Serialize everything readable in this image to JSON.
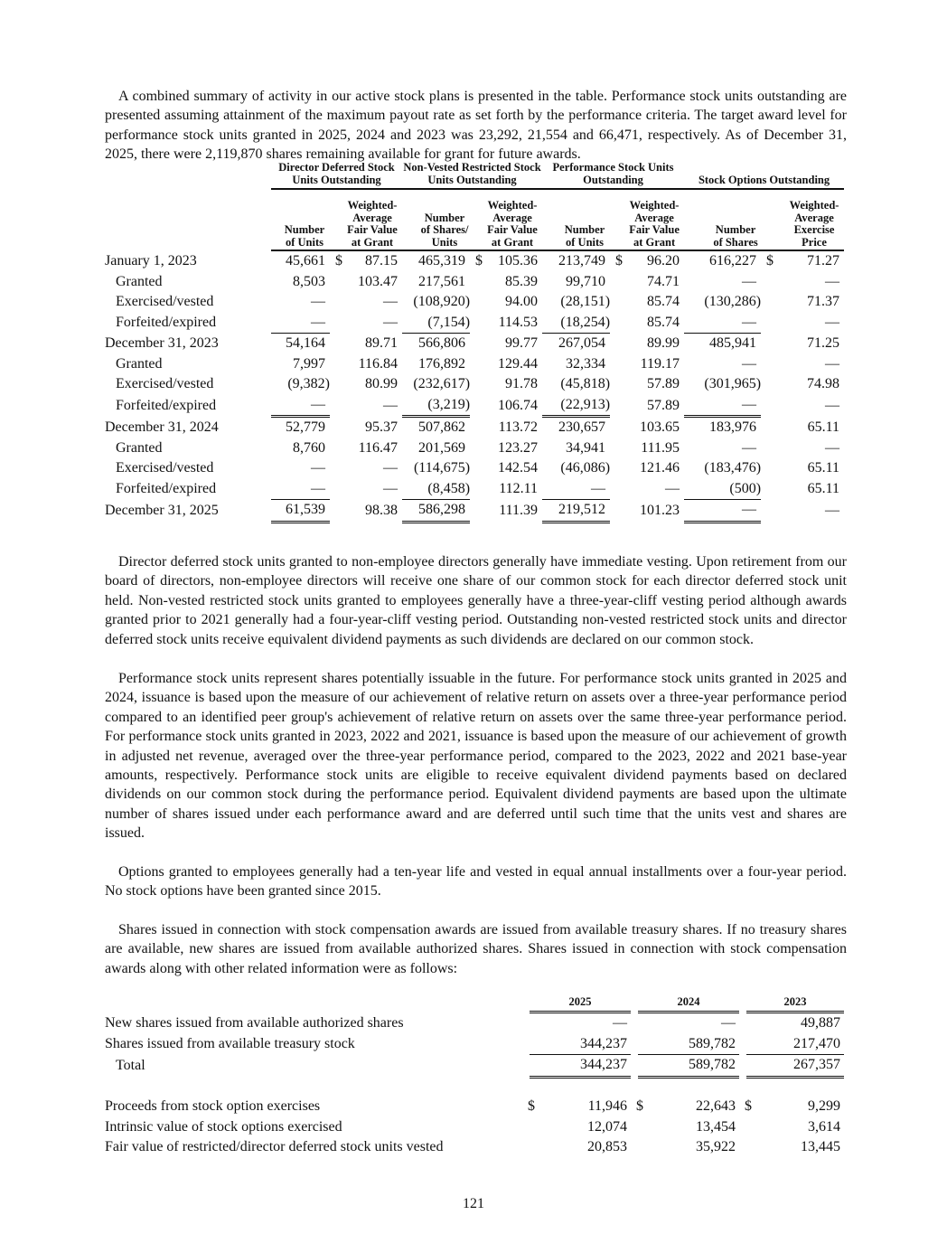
{
  "intro": "A combined summary of activity in our active stock plans is presented in the table. Performance stock units outstanding are presented assuming attainment of the maximum payout rate as set forth by the performance criteria. The target award level for performance stock units granted in 2025, 2024 and 2023 was 23,292, 21,554 and 66,471, respectively. As of December 31, 2025, there were 2,119,870 shares remaining available for grant for future awards.",
  "activity_table": {
    "groups": [
      "Director Deferred Stock Units Outstanding",
      "Non-Vested Restricted Stock Units Outstanding",
      "Performance Stock Units Outstanding",
      "Stock Options Outstanding"
    ],
    "columns": [
      "Number of Units",
      "Weighted-Average Fair Value at Grant",
      "Number of Shares/ Units",
      "Weighted-Average Fair Value at Grant",
      "Number of Units",
      "Weighted-Average Fair Value at Grant",
      "Number of Shares",
      "Weighted-Average Exercise Price"
    ],
    "currency_symbol": "$",
    "rows": [
      {
        "label": "January 1, 2023",
        "values": [
          "45,661",
          "87.15",
          "465,319",
          "105.36",
          "213,749",
          "96.20",
          "616,227",
          "71.27"
        ]
      },
      {
        "label": "Granted",
        "values": [
          "8,503",
          "103.47",
          "217,561",
          "85.39",
          "99,710",
          "74.71",
          "—",
          "—"
        ]
      },
      {
        "label": "Exercised/vested",
        "values": [
          "—",
          "—",
          "(108,920)",
          "94.00",
          "(28,151)",
          "85.74",
          "(130,286)",
          "71.37"
        ]
      },
      {
        "label": "Forfeited/expired",
        "values": [
          "—",
          "—",
          "(7,154)",
          "114.53",
          "(18,254)",
          "85.74",
          "—",
          "—"
        ]
      },
      {
        "label": "December 31, 2023",
        "values": [
          "54,164",
          "89.71",
          "566,806",
          "99.77",
          "267,054",
          "89.99",
          "485,941",
          "71.25"
        ]
      },
      {
        "label": "Granted",
        "values": [
          "7,997",
          "116.84",
          "176,892",
          "129.44",
          "32,334",
          "119.17",
          "—",
          "—"
        ]
      },
      {
        "label": "Exercised/vested",
        "values": [
          "(9,382)",
          "80.99",
          "(232,617)",
          "91.78",
          "(45,818)",
          "57.89",
          "(301,965)",
          "74.98"
        ]
      },
      {
        "label": "Forfeited/expired",
        "values": [
          "—",
          "—",
          "(3,219)",
          "106.74",
          "(22,913)",
          "57.89",
          "—",
          "—"
        ]
      },
      {
        "label": "December 31, 2024",
        "values": [
          "52,779",
          "95.37",
          "507,862",
          "113.72",
          "230,657",
          "103.65",
          "183,976",
          "65.11"
        ]
      },
      {
        "label": "Granted",
        "values": [
          "8,760",
          "116.47",
          "201,569",
          "123.27",
          "34,941",
          "111.95",
          "—",
          "—"
        ]
      },
      {
        "label": "Exercised/vested",
        "values": [
          "—",
          "—",
          "(114,675)",
          "142.54",
          "(46,086)",
          "121.46",
          "(183,476)",
          "65.11"
        ]
      },
      {
        "label": "Forfeited/expired",
        "values": [
          "—",
          "—",
          "(8,458)",
          "112.11",
          "—",
          "—",
          "(500)",
          "65.11"
        ]
      },
      {
        "label": "December 31, 2025",
        "values": [
          "61,539",
          "98.38",
          "586,298",
          "111.39",
          "219,512",
          "101.23",
          "—",
          "—"
        ]
      }
    ]
  },
  "paragraphs": [
    "Director deferred stock units granted to non-employee directors generally have immediate vesting. Upon retirement from our board of directors, non-employee directors will receive one share of our common stock for each director deferred stock unit held. Non-vested restricted stock units granted to employees generally have a three-year-cliff vesting period although awards granted prior to 2021 generally had a four-year-cliff vesting period. Outstanding non-vested restricted stock units and director deferred stock units receive equivalent dividend payments as such dividends are declared on our common stock.",
    "Performance stock units represent shares potentially issuable in the future. For performance stock units granted in 2025 and 2024, issuance is based upon the measure of our achievement of relative return on assets over a three-year performance period compared to an identified peer group's achievement of relative return on assets over the same three-year performance period. For performance stock units granted in 2023, 2022 and 2021, issuance is based upon the measure of our achievement of growth in adjusted net revenue, averaged over the three-year performance period, compared to the 2023, 2022 and 2021 base-year amounts, respectively. Performance stock units are eligible to receive equivalent dividend payments based on declared dividends on our common stock during the performance period. Equivalent dividend payments are based upon the ultimate number of shares issued under each performance award and are deferred until such time that the units vest and shares are issued.",
    "Options granted to employees generally had a ten-year life and vested in equal annual installments over a four-year period. No stock options have been granted since 2015.",
    "Shares issued in connection with stock compensation awards are issued from available treasury shares. If no treasury shares are available, new shares are issued from available authorized shares. Shares issued in connection with stock compensation awards along with other related information were as follows:"
  ],
  "shares_table": {
    "years": [
      "2025",
      "2024",
      "2023"
    ],
    "currency_symbol": "$",
    "rows": [
      {
        "label": "New shares issued from available authorized shares",
        "values": [
          "—",
          "—",
          "49,887"
        ]
      },
      {
        "label": "Shares issued from available treasury stock",
        "values": [
          "344,237",
          "589,782",
          "217,470"
        ]
      },
      {
        "label": "Total",
        "values": [
          "344,237",
          "589,782",
          "267,357"
        ]
      },
      {
        "label": "Proceeds from stock option exercises",
        "values": [
          "11,946",
          "22,643",
          "9,299"
        ]
      },
      {
        "label": "Intrinsic value of stock options exercised",
        "values": [
          "12,074",
          "13,454",
          "3,614"
        ]
      },
      {
        "label": "Fair value of restricted/director deferred stock units vested",
        "values": [
          "20,853",
          "35,922",
          "13,445"
        ]
      }
    ]
  },
  "page_number": "121"
}
